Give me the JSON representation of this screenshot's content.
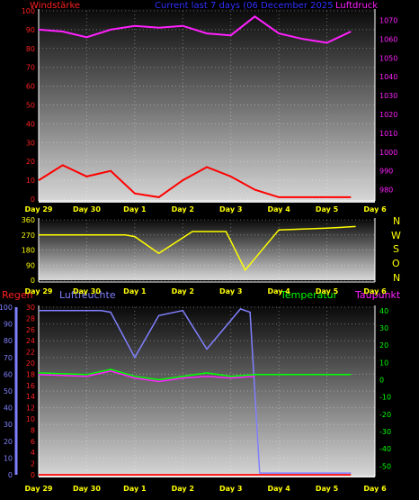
{
  "header": {
    "left_title": "Windstärke",
    "center_title": "Current last 7 days (06 December 2025",
    "right_title": "Luftdruck"
  },
  "wind_dir_letters": [
    "N",
    "W",
    "S",
    "O",
    "N"
  ],
  "bottom_headers": {
    "regen": "Regen",
    "luftfeuchte": "Luftfeuchte",
    "temperatur": "Temperatur",
    "taupunkt": "Taupunkt"
  },
  "colors": {
    "wind_title": "#ff2020",
    "center_title": "#3030ff",
    "pressure": "#ff20ff",
    "wind_speed": "#ff0000",
    "wind_gust": "#c8ffc8",
    "wind_dir": "#ffff00",
    "regen": "#ff2020",
    "humidity": "#8080ff",
    "temperature": "#00ff00",
    "dewpoint": "#ff20ff",
    "axis_yellow": "#ffff00",
    "axis_green": "#00ff00"
  },
  "chart_data": [
    {
      "type": "line",
      "panel": "wind_pressure",
      "title": "Windstärke",
      "right_title": "Luftdruck",
      "x_ticks": [
        "Day 29",
        "Day 30",
        "Day 1",
        "Day 2",
        "Day 3",
        "Day 4",
        "Day 5",
        "Day 6"
      ],
      "left_axis": {
        "ylim": [
          0,
          100
        ],
        "ticks": [
          0,
          10,
          20,
          30,
          40,
          50,
          60,
          70,
          80,
          90,
          100
        ]
      },
      "right_axis": {
        "ylim": [
          975,
          1075
        ],
        "ticks": [
          980,
          990,
          1000,
          1010,
          1020,
          1030,
          1040,
          1050,
          1060,
          1070
        ]
      },
      "grid": true,
      "series": [
        {
          "name": "Windstärke",
          "axis": "left",
          "day": [
            0,
            0.5,
            1,
            1.5,
            2,
            2.5,
            3,
            3.5,
            4,
            4.5,
            5,
            5.5,
            6,
            6.5
          ],
          "values": [
            10,
            18,
            12,
            15,
            3,
            1,
            10,
            17,
            12,
            5,
            1,
            1,
            1,
            1
          ]
        },
        {
          "name": "Luftdruck",
          "axis": "right",
          "day": [
            0,
            0.5,
            1,
            1.5,
            2,
            2.5,
            3,
            3.5,
            4,
            4.5,
            5,
            5.5,
            6,
            6.5
          ],
          "values": [
            1065,
            1064,
            1061,
            1065,
            1067,
            1066,
            1067,
            1063,
            1062,
            1072,
            1063,
            1060,
            1058,
            1064
          ]
        }
      ]
    },
    {
      "type": "line",
      "panel": "wind_direction",
      "x_ticks": [
        "Day 29",
        "Day 30",
        "Day 1",
        "Day 2",
        "Day 3",
        "Day 4",
        "Day 5",
        "Day 6"
      ],
      "left_axis": {
        "ylim": [
          0,
          360
        ],
        "ticks": [
          0,
          90,
          180,
          270,
          360
        ]
      },
      "grid": true,
      "series": [
        {
          "name": "Wind direction",
          "day": [
            0,
            1,
            1.8,
            2,
            2.5,
            3.2,
            3.9,
            4.3,
            5,
            6,
            6.6
          ],
          "values": [
            270,
            270,
            270,
            260,
            160,
            290,
            290,
            60,
            300,
            310,
            320
          ]
        }
      ]
    },
    {
      "type": "line",
      "panel": "rain_humidity_temperature",
      "x_ticks": [
        "Day 29",
        "Day 30",
        "Day 1",
        "Day 2",
        "Day 3",
        "Day 4",
        "Day 5",
        "Day 6"
      ],
      "rain_axis": {
        "ylim": [
          0,
          30
        ],
        "ticks": [
          0,
          2,
          4,
          6,
          8,
          10,
          12,
          14,
          16,
          18,
          20,
          22,
          24,
          26,
          28,
          30
        ]
      },
      "humidity_axis": {
        "ylim": [
          0,
          100
        ],
        "ticks": [
          0,
          10,
          20,
          30,
          40,
          50,
          60,
          70,
          80,
          90,
          100
        ]
      },
      "temperature_axis": {
        "ylim": [
          -55,
          42
        ],
        "ticks": [
          -50,
          -40,
          -30,
          -20,
          -10,
          0,
          10,
          20,
          30,
          40
        ]
      },
      "grid": true,
      "series": [
        {
          "name": "Regen",
          "axis": "rain",
          "day": [
            0,
            6.5
          ],
          "values": [
            0,
            0
          ]
        },
        {
          "name": "Luftfeuchte",
          "axis": "humidity",
          "day": [
            0,
            1.3,
            1.5,
            2,
            2.5,
            3,
            3.5,
            4.2,
            4.4,
            4.6,
            6.5
          ],
          "values": [
            98,
            98,
            97,
            70,
            95,
            98,
            75,
            99,
            97,
            1,
            1
          ]
        },
        {
          "name": "Temperatur",
          "axis": "temperature",
          "day": [
            0,
            1,
            1.5,
            2,
            2.5,
            3,
            3.5,
            4,
            4.5,
            6.5
          ],
          "values": [
            4,
            3,
            6,
            2,
            0,
            2,
            4,
            2,
            3,
            3
          ]
        },
        {
          "name": "Taupunkt",
          "axis": "temperature",
          "day": [
            0,
            1,
            1.5,
            2,
            2.5,
            3,
            3.5,
            4,
            4.5
          ],
          "values": [
            3,
            2,
            5,
            1,
            -1,
            1,
            2,
            1,
            2
          ]
        }
      ]
    }
  ]
}
